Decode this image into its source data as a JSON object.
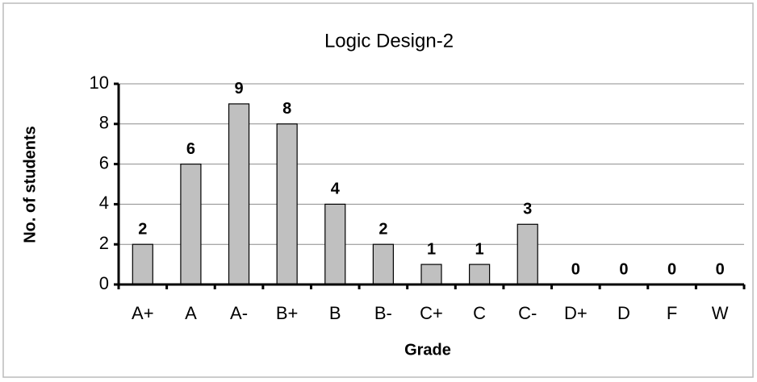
{
  "chart_data": {
    "type": "bar",
    "title": "Logic Design-2",
    "categories": [
      "A+",
      "A",
      "A-",
      "B+",
      "B",
      "B-",
      "C+",
      "C",
      "C-",
      "D+",
      "D",
      "F",
      "W"
    ],
    "values": [
      2,
      6,
      9,
      8,
      4,
      2,
      1,
      1,
      3,
      0,
      0,
      0,
      0
    ],
    "color": "#c0c0c0",
    "x_label": "Grade",
    "y_label": "No. of students",
    "ylim": [
      0,
      10
    ],
    "yticks": [
      0,
      2,
      4,
      6,
      8,
      10
    ],
    "grid": true
  }
}
